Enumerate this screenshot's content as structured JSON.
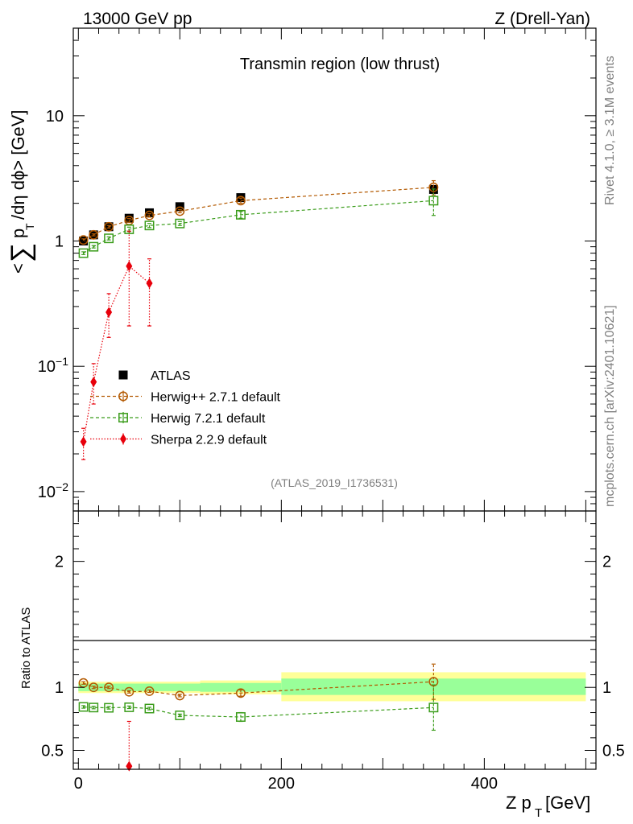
{
  "header": {
    "left": "13000 GeV pp",
    "right": "Z (Drell-Yan)"
  },
  "side_text": {
    "rivet": "Rivet 4.1.0, ≥ 3.1M events",
    "mcplots": "mcplots.cern.ch [arXiv:2401.10621]"
  },
  "chart_data": [
    {
      "type": "scatter",
      "panel": "main",
      "title": "Transmin region (low thrust)",
      "analysis_label": "(ATLAS_2019_I1736531)",
      "ylabel": "< ∑ p_T /dη dϕ> [GeV]",
      "yscale": "log",
      "ylim": [
        0.007,
        50
      ],
      "xlim": [
        -5,
        510
      ],
      "ytick_labels": [
        "10^-2",
        "10^-1",
        "1",
        "10"
      ],
      "legend_position": "lower-left",
      "series": [
        {
          "name": "ATLAS",
          "style": "data",
          "x": [
            5,
            15,
            30,
            50,
            70,
            100,
            160,
            350
          ],
          "y": [
            1.0,
            1.12,
            1.3,
            1.52,
            1.68,
            1.88,
            2.22,
            2.58
          ]
        },
        {
          "name": "Herwig++ 2.7.1 default",
          "style": "circle",
          "color": "#b35900",
          "x": [
            5,
            15,
            30,
            50,
            70,
            100,
            160,
            350
          ],
          "y": [
            1.02,
            1.12,
            1.3,
            1.46,
            1.6,
            1.73,
            2.1,
            2.68
          ],
          "err": [
            0.02,
            0.02,
            0.03,
            0.05,
            0.05,
            0.05,
            0.1,
            0.35
          ]
        },
        {
          "name": "Herwig 7.2.1 default",
          "style": "square",
          "color": "#3a9c1a",
          "x": [
            5,
            15,
            30,
            50,
            70,
            100,
            160,
            350
          ],
          "y": [
            0.8,
            0.9,
            1.05,
            1.24,
            1.33,
            1.38,
            1.62,
            2.1
          ],
          "err": [
            0.02,
            0.02,
            0.03,
            0.05,
            0.05,
            0.05,
            0.1,
            0.5
          ]
        },
        {
          "name": "Sherpa 2.2.9 default",
          "style": "diamond",
          "color": "#e8000b",
          "x": [
            5,
            15,
            30,
            50,
            70
          ],
          "y": [
            0.025,
            0.075,
            0.27,
            0.63,
            0.46
          ],
          "lo": [
            0.018,
            0.05,
            0.17,
            0.21,
            0.21
          ],
          "hi": [
            0.032,
            0.105,
            0.38,
            1.2,
            0.72
          ]
        }
      ]
    },
    {
      "type": "scatter",
      "panel": "ratio",
      "ylabel": "Ratio to ATLAS",
      "xlabel": "Z p_T [GeV]",
      "ylim": [
        0.35,
        2.4
      ],
      "ytick_labels": [
        "0.5",
        "1",
        "2"
      ],
      "xtick_labels": [
        "0",
        "200",
        "400"
      ],
      "bands": [
        {
          "x0": 0,
          "x1": 120,
          "inner": [
            0.97,
            1.03
          ],
          "outer": [
            0.955,
            1.045
          ]
        },
        {
          "x0": 120,
          "x1": 200,
          "inner": [
            0.965,
            1.035
          ],
          "outer": [
            0.945,
            1.055
          ]
        },
        {
          "x0": 200,
          "x1": 500,
          "inner": [
            0.94,
            1.07
          ],
          "outer": [
            0.89,
            1.12
          ]
        }
      ],
      "series": [
        {
          "name": "Herwig++ 2.7.1 default",
          "style": "circle",
          "color": "#b35900",
          "x": [
            5,
            15,
            30,
            50,
            70,
            100,
            160,
            350
          ],
          "y": [
            1.035,
            1.0,
            1.0,
            0.965,
            0.97,
            0.935,
            0.955,
            1.045
          ],
          "err": [
            0.01,
            0.01,
            0.01,
            0.01,
            0.01,
            0.01,
            0.025,
            0.14
          ]
        },
        {
          "name": "Herwig 7.2.1 default",
          "style": "square",
          "color": "#3a9c1a",
          "x": [
            5,
            15,
            30,
            50,
            70,
            100,
            160,
            350
          ],
          "y": [
            0.845,
            0.84,
            0.838,
            0.842,
            0.832,
            0.778,
            0.765,
            0.84
          ],
          "err": [
            0.01,
            0.01,
            0.01,
            0.01,
            0.01,
            0.01,
            0.035,
            0.18
          ]
        },
        {
          "name": "Sherpa 2.2.9 default",
          "style": "diamond",
          "color": "#e8000b",
          "x": [
            50
          ],
          "y": [
            0.375
          ],
          "hi": [
            0.73
          ]
        }
      ]
    }
  ]
}
